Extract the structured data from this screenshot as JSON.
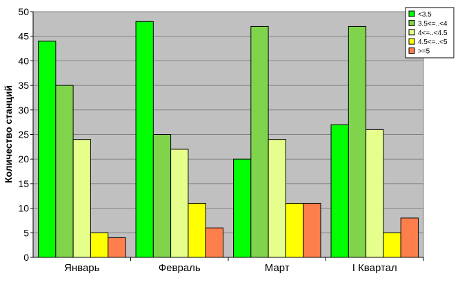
{
  "chart_data": {
    "type": "bar",
    "title": "",
    "xlabel": "",
    "ylabel": "Количество станций",
    "ylim": [
      0,
      50
    ],
    "yticks": [
      0,
      5,
      10,
      15,
      20,
      25,
      30,
      35,
      40,
      45,
      50
    ],
    "grid": true,
    "legend_position": "top-right",
    "plot_background": "#c0c0c0",
    "categories": [
      "Январь",
      "Февраль",
      "Март",
      "I Квартал"
    ],
    "series": [
      {
        "name": "<3.5",
        "color": "#00ff00",
        "values": [
          44,
          48,
          20,
          27
        ]
      },
      {
        "name": "3.5<=..<4",
        "color": "#7fd44c",
        "values": [
          35,
          25,
          47,
          47
        ]
      },
      {
        "name": "4<=..<4.5",
        "color": "#e6ff8c",
        "values": [
          24,
          22,
          24,
          26
        ]
      },
      {
        "name": "4.5<=..<5",
        "color": "#ffff00",
        "values": [
          5,
          11,
          11,
          5
        ]
      },
      {
        "name": ">=5",
        "color": "#ff7f4c",
        "values": [
          4,
          6,
          11,
          8
        ]
      }
    ]
  }
}
